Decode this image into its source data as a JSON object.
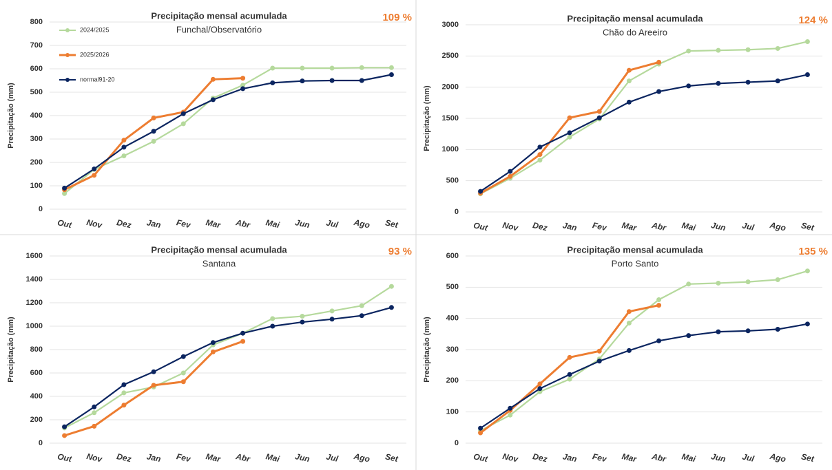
{
  "chart_data": [
    {
      "type": "line",
      "title": "Precipitação mensal acumulada",
      "subtitle": "Funchal/Observatório",
      "annotation": "109 %",
      "y_label": "Precipitação (mm)",
      "categories": [
        "Out",
        "Nov",
        "Dez",
        "Jan",
        "Fev",
        "Mar",
        "Abr",
        "Mai",
        "Jun",
        "Jul",
        "Ago",
        "Set"
      ],
      "ylim": [
        0,
        800
      ],
      "yticks": [
        0,
        100,
        200,
        300,
        400,
        500,
        600,
        700,
        800
      ],
      "grid": true,
      "legend": "upper left",
      "series": [
        {
          "name": "2024/2025",
          "color": "#b5d99c",
          "values": [
            67,
            170,
            228,
            290,
            365,
            475,
            530,
            603,
            603,
            603,
            605,
            605
          ]
        },
        {
          "name": "2025/2026",
          "color": "#ed7d31",
          "values": [
            83,
            145,
            295,
            390,
            415,
            555,
            560,
            null,
            null,
            null,
            null,
            null
          ]
        },
        {
          "name": "normal91-20",
          "color": "#0b2560",
          "values": [
            90,
            172,
            265,
            333,
            408,
            468,
            515,
            540,
            548,
            550,
            550,
            575
          ]
        }
      ]
    },
    {
      "type": "line",
      "title": "Precipitação mensal acumulada",
      "subtitle": "Chão do Areeiro",
      "annotation": "124 %",
      "y_label": "Precipitação (mm)",
      "categories": [
        "Out",
        "Nov",
        "Dez",
        "Jan",
        "Fev",
        "Mar",
        "Abr",
        "Mai",
        "Jun",
        "Jul",
        "Ago",
        "Set"
      ],
      "ylim": [
        0,
        3000
      ],
      "yticks": [
        0,
        500,
        1000,
        1500,
        2000,
        2500,
        3000
      ],
      "grid": true,
      "series": [
        {
          "color": "#b5d99c",
          "values": [
            290,
            540,
            830,
            1200,
            1490,
            2100,
            2370,
            2580,
            2590,
            2600,
            2620,
            2730
          ]
        },
        {
          "color": "#ed7d31",
          "values": [
            300,
            570,
            920,
            1510,
            1610,
            2270,
            2400,
            null,
            null,
            null,
            null,
            null
          ]
        },
        {
          "color": "#0b2560",
          "values": [
            330,
            650,
            1040,
            1270,
            1510,
            1760,
            1930,
            2020,
            2060,
            2080,
            2100,
            2200
          ]
        }
      ]
    },
    {
      "type": "line",
      "title": "Precipitação mensal acumulada",
      "subtitle": "Santana",
      "annotation": "93 %",
      "y_label": "Precipitação (mm)",
      "categories": [
        "Out",
        "Nov",
        "Dez",
        "Jan",
        "Fev",
        "Mar",
        "Abr",
        "Mai",
        "Jun",
        "Jul",
        "Ago",
        "Set"
      ],
      "ylim": [
        0,
        1600
      ],
      "yticks": [
        0,
        200,
        400,
        600,
        800,
        1000,
        1200,
        1400,
        1600
      ],
      "grid": true,
      "series": [
        {
          "color": "#b5d99c",
          "values": [
            130,
            260,
            430,
            480,
            600,
            840,
            940,
            1065,
            1085,
            1130,
            1175,
            1340
          ]
        },
        {
          "color": "#ed7d31",
          "values": [
            65,
            145,
            325,
            495,
            525,
            780,
            870,
            null,
            null,
            null,
            null,
            null
          ]
        },
        {
          "color": "#0b2560",
          "values": [
            140,
            310,
            500,
            610,
            740,
            860,
            940,
            1000,
            1035,
            1060,
            1090,
            1160
          ]
        }
      ]
    },
    {
      "type": "line",
      "title": "Precipitação mensal acumulada",
      "subtitle": "Porto Santo",
      "annotation": "135 %",
      "y_label": "Precipitação (mm)",
      "categories": [
        "Out",
        "Nov",
        "Dez",
        "Jan",
        "Fev",
        "Mar",
        "Abr",
        "Mai",
        "Jun",
        "Jul",
        "Ago",
        "Set"
      ],
      "ylim": [
        0,
        600
      ],
      "yticks": [
        0,
        100,
        200,
        300,
        400,
        500,
        600
      ],
      "grid": true,
      "series": [
        {
          "color": "#b5d99c",
          "values": [
            40,
            90,
            165,
            205,
            270,
            385,
            460,
            510,
            513,
            517,
            524,
            552
          ]
        },
        {
          "color": "#ed7d31",
          "values": [
            33,
            105,
            190,
            275,
            295,
            422,
            442,
            null,
            null,
            null,
            null,
            null
          ]
        },
        {
          "color": "#0b2560",
          "values": [
            48,
            112,
            175,
            220,
            263,
            297,
            328,
            345,
            357,
            360,
            365,
            382
          ]
        }
      ]
    }
  ]
}
